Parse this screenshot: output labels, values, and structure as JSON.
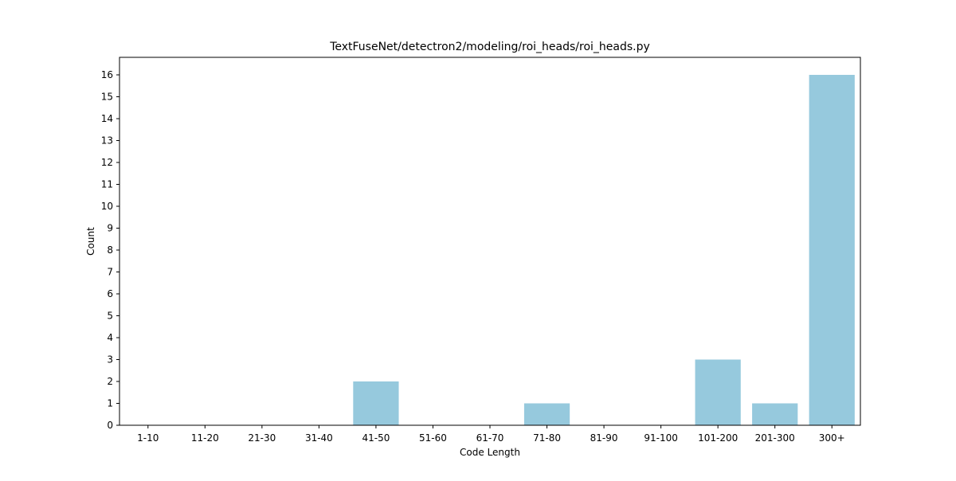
{
  "chart_data": {
    "type": "bar",
    "title": "TextFuseNet/detectron2/modeling/roi_heads/roi_heads.py",
    "xlabel": "Code Length",
    "ylabel": "Count",
    "categories": [
      "1-10",
      "11-20",
      "21-30",
      "31-40",
      "41-50",
      "51-60",
      "61-70",
      "71-80",
      "81-90",
      "91-100",
      "101-200",
      "201-300",
      "300+"
    ],
    "values": [
      0,
      0,
      0,
      0,
      2,
      0,
      0,
      1,
      0,
      0,
      3,
      1,
      16
    ],
    "yticks": [
      0,
      1,
      2,
      3,
      4,
      5,
      6,
      7,
      8,
      9,
      10,
      11,
      12,
      13,
      14,
      15,
      16
    ],
    "ylim": [
      0,
      16.8
    ],
    "grid": false,
    "bar_color": "#96c9dd"
  }
}
